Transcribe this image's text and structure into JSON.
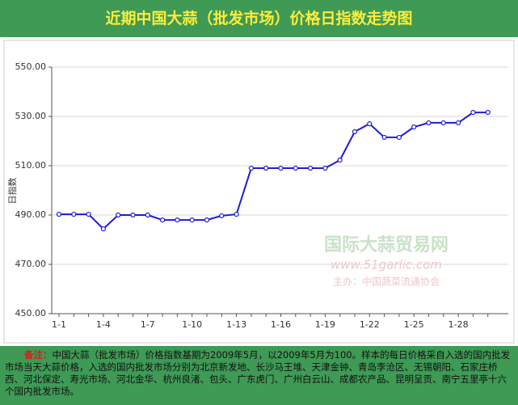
{
  "chart_data": {
    "type": "line",
    "title": "近期中国大蒜（批发市场）价格日指数走势图",
    "y_label": "日指数",
    "categories": [
      "1-1",
      null,
      null,
      "1-4",
      null,
      null,
      "1-7",
      null,
      null,
      "1-10",
      null,
      null,
      "1-13",
      null,
      null,
      "1-16",
      null,
      null,
      "1-19",
      null,
      null,
      "1-22",
      null,
      null,
      "1-25",
      null,
      null,
      "1-28",
      null,
      null
    ],
    "series": [
      {
        "color": "#1c1cd6",
        "values": [
          490.3,
          490.3,
          490.3,
          484.4,
          490.0,
          490.0,
          490.0,
          488.0,
          488.0,
          488.0,
          488.0,
          489.7,
          490.3,
          509.0,
          509.0,
          509.0,
          509.0,
          509.0,
          509.0,
          512.3,
          523.8,
          527.0,
          521.5,
          521.5,
          525.7,
          527.4,
          527.4,
          527.4,
          531.6,
          531.6
        ]
      }
    ],
    "ylim": [
      450,
      550
    ],
    "yticks": [
      {
        "value": 450,
        "label": "450.00"
      },
      {
        "value": 470,
        "label": "470.00"
      },
      {
        "value": 490,
        "label": "490.00"
      },
      {
        "value": 510,
        "label": "510.00"
      },
      {
        "value": 530,
        "label": "530.00"
      },
      {
        "value": 550,
        "label": "550.00"
      }
    ],
    "grid": true,
    "watermark": [
      "国际大蒜贸易网",
      "www.51garlic.com",
      "主办：中国蔬菜流通协会"
    ],
    "note_label": "备注：",
    "note": "中国大蒜（批发市场）价格指数基期为2009年5月，以2009年5月为100。样本的每日价格采自入选的国内批发市场当天大蒜价格，入选的国内批发市场分别为北京新发地、长沙马王堆、天津金钟、青岛李沧区、无锡朝阳、石家庄桥西、河北保定、寿光市场、河北金华、杭州良渚、包头、广东虎门、广州白云山、成都农产品、昆明呈贡、南宁五里亭十六个国内批发市场。"
  }
}
